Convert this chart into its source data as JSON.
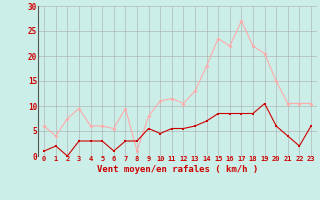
{
  "x": [
    0,
    1,
    2,
    3,
    4,
    5,
    6,
    7,
    8,
    9,
    10,
    11,
    12,
    13,
    14,
    15,
    16,
    17,
    18,
    19,
    20,
    21,
    22,
    23
  ],
  "rafales": [
    6,
    4,
    7.5,
    9.5,
    6,
    6,
    5.5,
    9.5,
    1,
    8,
    11,
    11.5,
    10.5,
    13,
    18,
    23.5,
    22,
    27,
    22,
    20.5,
    15,
    10.5,
    10.5,
    10.5
  ],
  "moyen": [
    1,
    2,
    0,
    3,
    3,
    3,
    1,
    3,
    3,
    5.5,
    4.5,
    5.5,
    5.5,
    6,
    7,
    8.5,
    8.5,
    8.5,
    8.5,
    10.5,
    6,
    4,
    2,
    6
  ],
  "color_rafales": "#ffaaaa",
  "color_moyen": "#cc0000",
  "bg_color": "#cceee8",
  "grid_color": "#aaaaaa",
  "xlabel": "Vent moyen/en rafales ( km/h )",
  "xlabel_color": "#cc0000",
  "tick_color": "#cc0000",
  "ylim": [
    0,
    30
  ],
  "yticks": [
    0,
    5,
    10,
    15,
    20,
    25,
    30
  ],
  "xticks": [
    0,
    1,
    2,
    3,
    4,
    5,
    6,
    7,
    8,
    9,
    10,
    11,
    12,
    13,
    14,
    15,
    16,
    17,
    18,
    19,
    20,
    21,
    22,
    23
  ]
}
